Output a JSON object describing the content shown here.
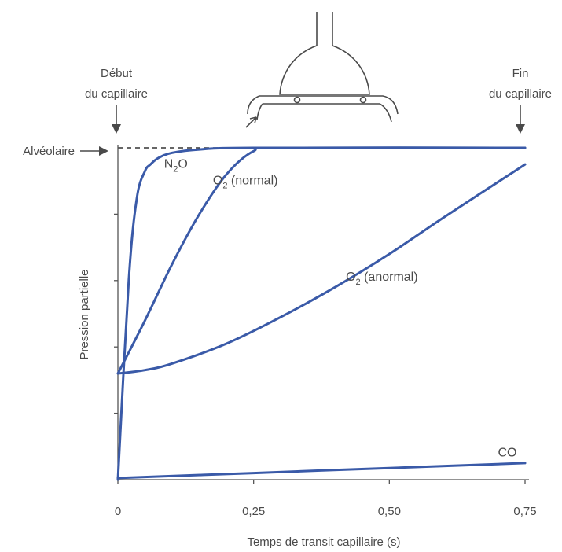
{
  "colors": {
    "curve": "#3a5aa8",
    "axis": "#555555",
    "text": "#4a4a4a"
  },
  "annotations": {
    "start_line1": "Début",
    "start_line2": "du capillaire",
    "end_line1": "Fin",
    "end_line2": "du capillaire",
    "alveolar": "Alvéolaire"
  },
  "chart_data": {
    "type": "line",
    "title": "",
    "xlabel": "Temps de transit capillaire (s)",
    "ylabel": "Pression partielle",
    "xlim": [
      0,
      0.75
    ],
    "ylim": [
      0,
      100
    ],
    "x_ticks": [
      "0",
      "0,25",
      "0,50",
      "0,75"
    ],
    "x_tick_values": [
      0,
      0.25,
      0.5,
      0.75
    ],
    "y_tick_values": [
      20,
      40,
      60,
      80
    ],
    "grid": false,
    "alveolar_level": 100,
    "series": [
      {
        "name": "N₂O",
        "name_base": "N",
        "name_sub": "2",
        "name_rest": "O",
        "x": [
          0,
          0.02,
          0.035,
          0.05,
          0.06,
          0.075,
          0.1,
          0.15,
          0.25,
          0.75
        ],
        "y": [
          0,
          60,
          85,
          93,
          95,
          97,
          98.5,
          99.5,
          100,
          100
        ]
      },
      {
        "name": "O₂ (normal)",
        "name_base": "O",
        "name_sub": "2",
        "name_rest": " (normal)",
        "x": [
          0,
          0.05,
          0.1,
          0.15,
          0.2,
          0.25,
          0.3,
          0.75
        ],
        "y": [
          32,
          48,
          65,
          80,
          92,
          99,
          100,
          100
        ]
      },
      {
        "name": "O₂ (anormal)",
        "name_base": "O",
        "name_sub": "2",
        "name_rest": " (anormal)",
        "x": [
          0,
          0.05,
          0.1,
          0.2,
          0.3,
          0.4,
          0.5,
          0.6,
          0.75
        ],
        "y": [
          32,
          33,
          35,
          41,
          49,
          58,
          68,
          79,
          95
        ]
      },
      {
        "name": "CO",
        "name_base": "CO",
        "name_sub": "",
        "name_rest": "",
        "x": [
          0,
          0.25,
          0.5,
          0.75
        ],
        "y": [
          0.5,
          2,
          3.5,
          5
        ]
      }
    ]
  }
}
